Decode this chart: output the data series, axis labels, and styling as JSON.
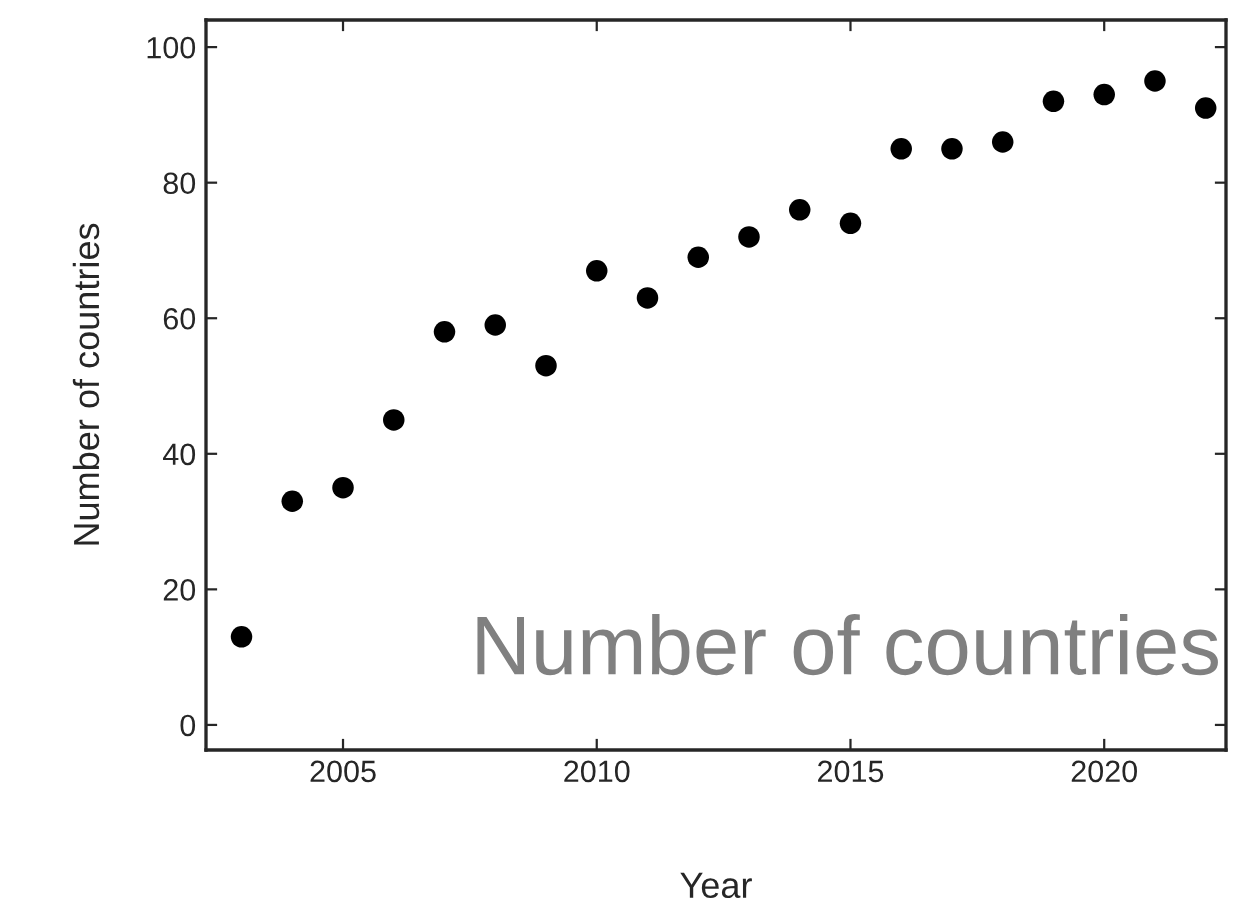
{
  "chart_data": {
    "type": "scatter",
    "xlabel": "Year",
    "ylabel": "Number of countries",
    "x": [
      2003,
      2004,
      2005,
      2006,
      2007,
      2008,
      2009,
      2010,
      2011,
      2012,
      2013,
      2014,
      2015,
      2016,
      2017,
      2018,
      2019,
      2020,
      2021,
      2022
    ],
    "series": [
      {
        "color": "#000000",
        "values": [
          13,
          33,
          35,
          45,
          58,
          59,
          53,
          67,
          63,
          69,
          72,
          76,
          74,
          85,
          85,
          86,
          92,
          93,
          95,
          91
        ]
      }
    ],
    "xlim": [
      2002.3,
      2022.4
    ],
    "ylim": [
      -3.7,
      104
    ],
    "xticks": [
      2005,
      2010,
      2015,
      2020
    ],
    "yticks": [
      0,
      20,
      40,
      60,
      80,
      100
    ],
    "marker": "circle",
    "grid": false,
    "legend": false,
    "annotations": [
      "Number of countries"
    ]
  }
}
